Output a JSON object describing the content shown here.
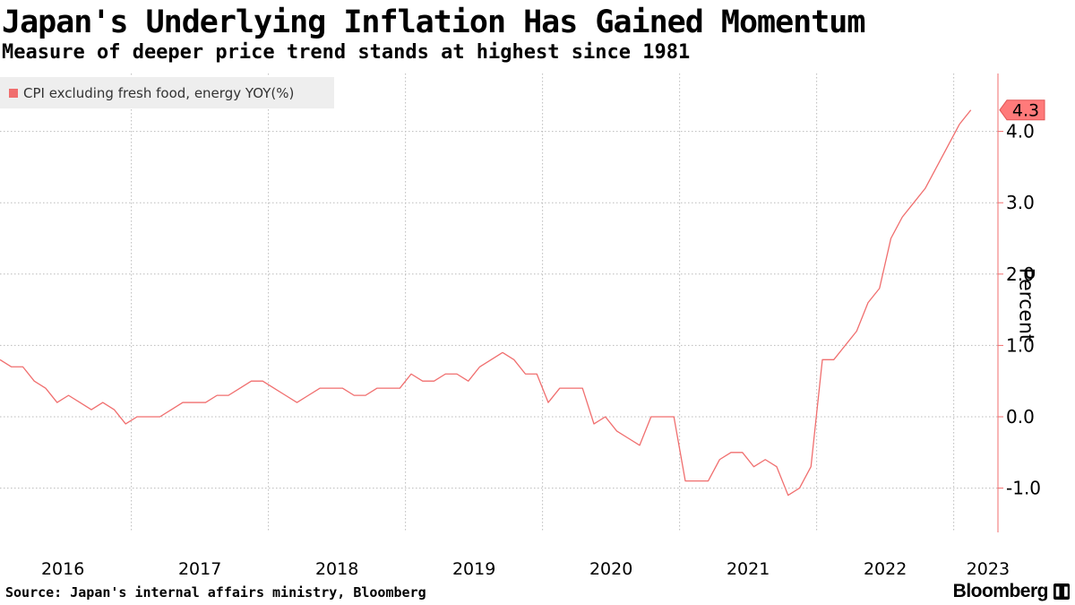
{
  "header": {
    "title": "Japan's Underlying Inflation Has Gained Momentum",
    "subtitle": "Measure of deeper price trend stands at highest since 1981"
  },
  "legend": {
    "label": "CPI excluding fresh food, energy YOY(%)"
  },
  "footer": {
    "source": "Source: Japan's internal affairs ministry, Bloomberg",
    "brand": "Bloomberg",
    "brand_icon": "pause-icon"
  },
  "colors": {
    "series": "#f06e6e",
    "last_value_bg": "#ff7a7a",
    "grid": "#bbbbbb",
    "axis": "#f06e6e",
    "text": "#000000"
  },
  "chart_data": {
    "type": "line",
    "title": "Japan's Underlying Inflation Has Gained Momentum",
    "subtitle": "Measure of deeper price trend stands at highest since 1981",
    "xlabel": "",
    "ylabel": "Percent",
    "ylim": [
      -1.6,
      4.8
    ],
    "yticks": [
      -1.0,
      0.0,
      1.0,
      2.0,
      3.0,
      4.0
    ],
    "ytick_labels": [
      "-1.0",
      "0.0",
      "1.0",
      "2.0",
      "3.0",
      "4.0"
    ],
    "x_start": "2016-01",
    "x_end": "2023-06",
    "xtick_labels": [
      "2016",
      "2017",
      "2018",
      "2019",
      "2020",
      "2021",
      "2022",
      "2023"
    ],
    "grid": true,
    "legend_position": "top-left",
    "last_value_label": "4.3",
    "series": [
      {
        "name": "CPI excluding fresh food, energy YOY(%)",
        "values": [
          0.8,
          0.7,
          0.7,
          0.5,
          0.4,
          0.2,
          0.3,
          0.2,
          0.1,
          0.2,
          0.1,
          -0.1,
          0.0,
          0.0,
          0.0,
          0.1,
          0.2,
          0.2,
          0.2,
          0.3,
          0.3,
          0.4,
          0.5,
          0.5,
          0.4,
          0.3,
          0.2,
          0.3,
          0.4,
          0.4,
          0.4,
          0.3,
          0.3,
          0.4,
          0.4,
          0.4,
          0.6,
          0.5,
          0.5,
          0.6,
          0.6,
          0.5,
          0.7,
          0.8,
          0.9,
          0.8,
          0.6,
          0.6,
          0.2,
          0.4,
          0.4,
          0.4,
          -0.1,
          0.0,
          -0.2,
          -0.3,
          -0.4,
          0.0,
          0.0,
          0.0,
          -0.9,
          -0.9,
          -0.9,
          -0.6,
          -0.5,
          -0.5,
          -0.7,
          -0.6,
          -0.7,
          -1.1,
          -1.0,
          -0.7,
          0.8,
          0.8,
          1.0,
          1.2,
          1.6,
          1.8,
          2.5,
          2.8,
          3.0,
          3.2,
          3.5,
          3.8,
          4.1,
          4.3
        ]
      }
    ]
  }
}
